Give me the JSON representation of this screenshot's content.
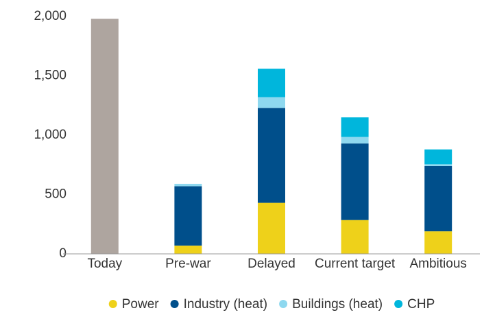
{
  "chart_data": {
    "type": "bar",
    "stacked": true,
    "categories": [
      "Today",
      "Pre-war",
      "Delayed",
      "Current target",
      "Ambitious"
    ],
    "series": [
      {
        "color": "#aea59f",
        "values": [
          1980,
          null,
          null,
          null,
          null
        ]
      },
      {
        "name": "Power",
        "color": "#eed11a",
        "values": [
          null,
          70,
          430,
          285,
          190
        ]
      },
      {
        "name": "Industry (heat)",
        "color": "#004f8b",
        "values": [
          null,
          500,
          800,
          645,
          550
        ]
      },
      {
        "name": "Buildings (heat)",
        "color": "#8ed8ef",
        "values": [
          null,
          20,
          90,
          55,
          15
        ]
      },
      {
        "name": "CHP",
        "color": "#00b6dc",
        "values": [
          null,
          0,
          240,
          165,
          125
        ]
      }
    ],
    "ylim": [
      0,
      2000
    ],
    "yticks": [
      0,
      500,
      {
        "value": 1000,
        "label": "1,000"
      },
      {
        "value": 1500,
        "label": "1,500"
      },
      {
        "value": 2000,
        "label": "2,000"
      }
    ],
    "grid": false,
    "legend": "bottom"
  }
}
